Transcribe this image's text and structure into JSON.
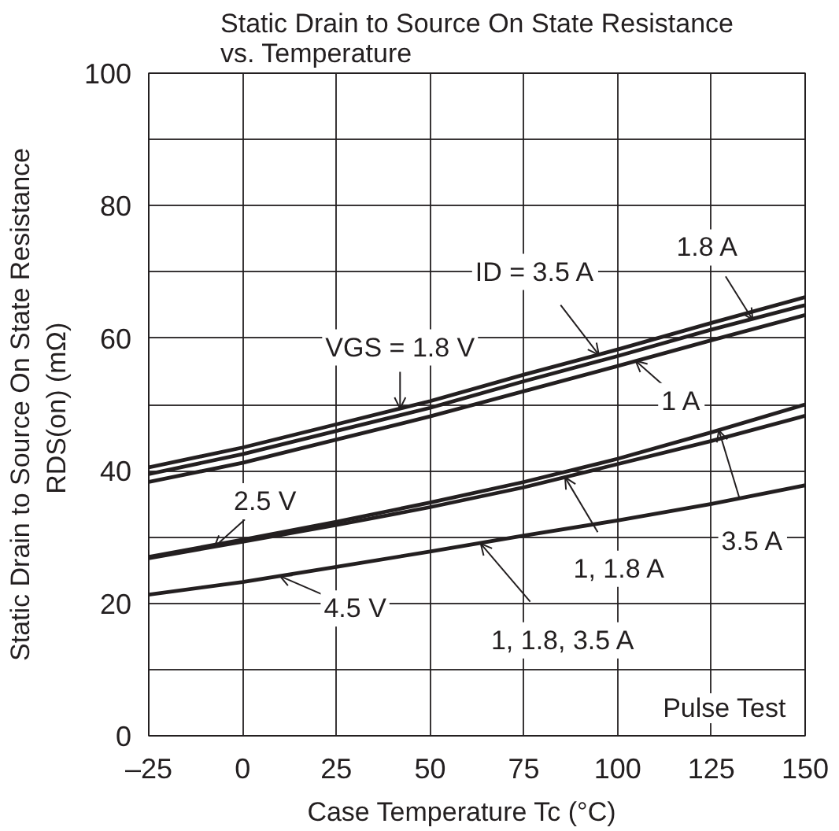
{
  "chart_data": {
    "type": "line",
    "title": "Static Drain to Source On State Resistance\nvs. Temperature",
    "xlabel": "Case Temperature    Tc  (°C)",
    "ylabel": "Static Drain to Source On State Resistance\nRDS(on)  (mΩ)",
    "x": [
      -25,
      0,
      25,
      50,
      75,
      100,
      125,
      150
    ],
    "series": [
      {
        "color": "#231f20",
        "values": [
          40.5,
          43.5,
          47,
          50.5,
          54.5,
          58.3,
          62.3,
          66.2
        ]
      },
      {
        "color": "#231f20",
        "values": [
          39.5,
          42.5,
          46,
          49.5,
          53.5,
          57.3,
          61.3,
          65
        ]
      },
      {
        "color": "#231f20",
        "values": [
          38.3,
          41.2,
          44.7,
          48.2,
          52,
          55.8,
          59.7,
          63.5
        ]
      },
      {
        "color": "#231f20",
        "values": [
          27,
          29.6,
          32.3,
          35.2,
          38.3,
          41.8,
          45.8,
          50
        ]
      },
      {
        "color": "#231f20",
        "values": [
          26.8,
          29.3,
          31.8,
          34.5,
          37.5,
          41,
          44.5,
          48.3
        ]
      },
      {
        "color": "#231f20",
        "values": [
          21.3,
          23.2,
          25.5,
          27.8,
          30.2,
          32.5,
          35,
          37.8
        ]
      }
    ],
    "xlim": [
      -25,
      150
    ],
    "xticks": [
      {
        "value": -25,
        "label": "–25"
      },
      0,
      25,
      50,
      75,
      100,
      125,
      150
    ],
    "ylim": [
      0,
      100
    ],
    "yticks": [
      0,
      {
        "value": 10,
        "label": null
      },
      20,
      {
        "value": 30,
        "label": null
      },
      40,
      {
        "value": 50,
        "label": null
      },
      60,
      {
        "value": 70,
        "label": null
      },
      80,
      {
        "value": 90,
        "label": null
      },
      100
    ],
    "grid": true,
    "marker": "none",
    "line_style": "solid",
    "annotations": [
      {
        "text": "ID = 3.5 A",
        "x": 95,
        "y": 57.5
      },
      {
        "text": "1.8 A",
        "x": 136,
        "y": 62.8
      },
      {
        "text": "VGS = 1.8 V",
        "x": 42,
        "y": 49.4
      },
      {
        "text": "1 A",
        "x": 104.8,
        "y": 56.6
      },
      {
        "text": "2.5 V",
        "x": -7.5,
        "y": 28.5
      },
      {
        "text": "4.5 V",
        "x": 10,
        "y": 24.1
      },
      {
        "text": "1, 1.8 A",
        "x": 86,
        "y": 39
      },
      {
        "text": "3.5 A",
        "x": 127,
        "y": 46.1
      },
      {
        "text": "1, 1.8, 3.5 A",
        "x": 63.5,
        "y": 29
      },
      "Pulse Test"
    ]
  }
}
